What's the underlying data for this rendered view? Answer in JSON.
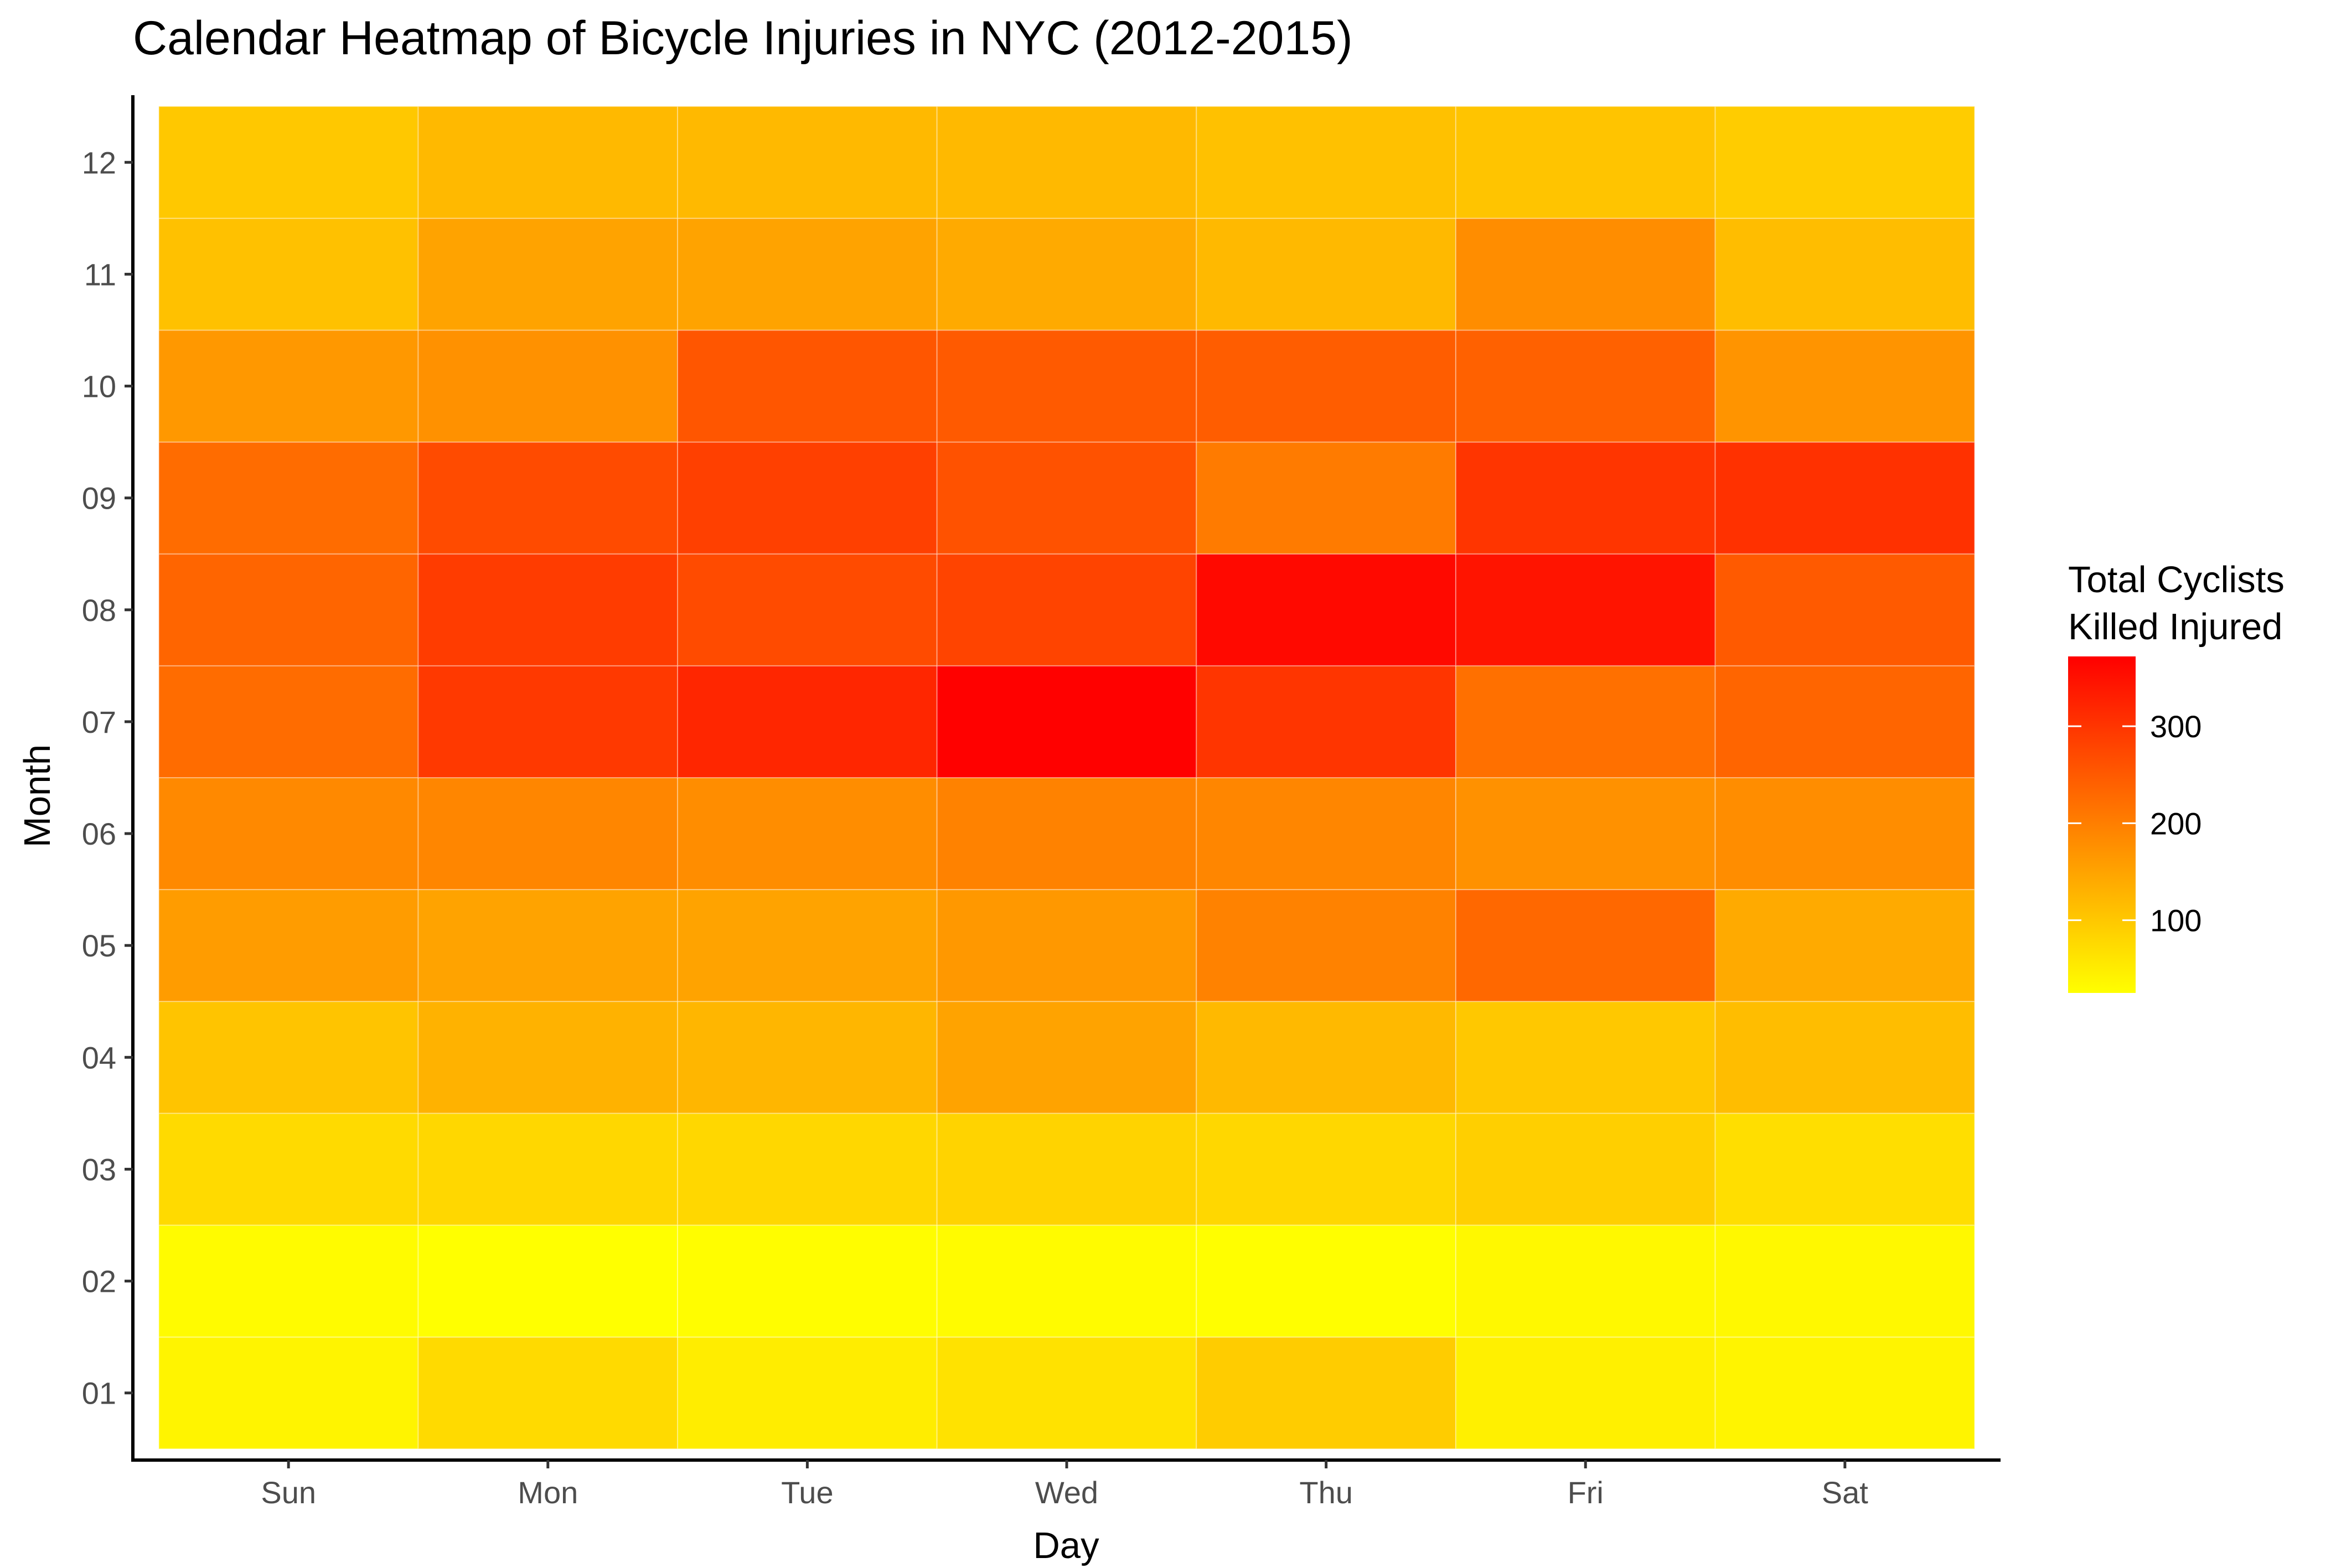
{
  "chart_data": {
    "type": "heatmap",
    "title": "Calendar Heatmap of Bicycle Injuries in NYC (2012-2015)",
    "xlabel": "Day",
    "ylabel": "Month",
    "x_categories": [
      "Sun",
      "Mon",
      "Tue",
      "Wed",
      "Thu",
      "Fri",
      "Sat"
    ],
    "y_categories": [
      "01",
      "02",
      "03",
      "04",
      "05",
      "06",
      "07",
      "08",
      "09",
      "10",
      "11",
      "12"
    ],
    "values": [
      [
        40,
        75,
        50,
        65,
        95,
        45,
        40
      ],
      [
        30,
        25,
        28,
        30,
        26,
        35,
        35
      ],
      [
        75,
        80,
        80,
        85,
        80,
        90,
        70
      ],
      [
        105,
        130,
        125,
        150,
        120,
        100,
        115
      ],
      [
        160,
        150,
        150,
        165,
        195,
        230,
        140
      ],
      [
        185,
        190,
        180,
        195,
        190,
        175,
        180
      ],
      [
        225,
        295,
        320,
        370,
        300,
        220,
        235
      ],
      [
        235,
        290,
        270,
        280,
        360,
        345,
        250
      ],
      [
        225,
        270,
        285,
        260,
        205,
        300,
        305
      ],
      [
        165,
        175,
        255,
        250,
        245,
        240,
        170
      ],
      [
        110,
        150,
        150,
        140,
        120,
        180,
        115
      ],
      [
        100,
        120,
        120,
        120,
        110,
        105,
        95
      ]
    ],
    "color_scale": {
      "title_lines": [
        "Total Cyclists",
        "Killed Injured"
      ],
      "low_color": "#ffff00",
      "high_color": "#ff0000",
      "range": [
        25,
        372
      ],
      "ticks": [
        100,
        200,
        300
      ]
    },
    "legend_position": "right",
    "grid": false
  }
}
